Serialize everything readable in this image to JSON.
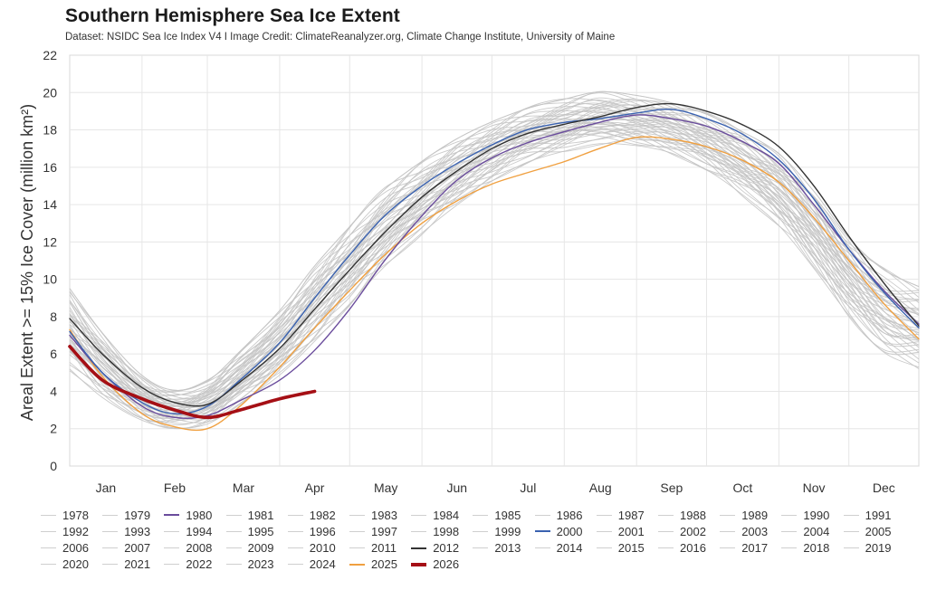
{
  "title": "Southern Hemisphere Sea Ice Extent",
  "subtitle": "Dataset: NSIDC Sea Ice Index V4 I Image Credit: ClimateReanalyzer.org, Climate Change Institute, University of Maine",
  "chart_data": {
    "type": "line",
    "title": "Southern Hemisphere Sea Ice Extent",
    "xlabel": "",
    "ylabel": "Areal Extent >= 15% Ice Cover (million km²)",
    "ylim": [
      0,
      22
    ],
    "xlim": [
      1,
      365
    ],
    "yticks": [
      0,
      2,
      4,
      6,
      8,
      10,
      12,
      14,
      16,
      18,
      20,
      22
    ],
    "month_labels": [
      "Jan",
      "Feb",
      "Mar",
      "Apr",
      "May",
      "Jun",
      "Jul",
      "Aug",
      "Sep",
      "Oct",
      "Nov",
      "Dec"
    ],
    "month_start_days": [
      1,
      32,
      60,
      91,
      121,
      152,
      182,
      213,
      244,
      274,
      305,
      335
    ],
    "grid": true,
    "legend_position": "bottom",
    "colors": {
      "default": "#c4c4c4",
      "1980": "#6a4c9c",
      "2000": "#3a62b0",
      "2012": "#333333",
      "2025": "#f0a040",
      "2026": "#a50f15"
    },
    "x_days": [
      1,
      15,
      32,
      46,
      60,
      74,
      91,
      106,
      121,
      136,
      152,
      167,
      182,
      197,
      213,
      228,
      244,
      259,
      274,
      289,
      305,
      320,
      335,
      350,
      365
    ],
    "climatology_envelope": {
      "upper": [
        9.6,
        7.2,
        4.9,
        4.1,
        4.6,
        6.2,
        8.4,
        10.8,
        12.9,
        14.9,
        16.4,
        17.6,
        18.5,
        19.2,
        19.7,
        20.1,
        19.9,
        19.5,
        18.9,
        18.0,
        16.8,
        14.8,
        12.3,
        10.6,
        9.7
      ],
      "lower": [
        5.1,
        3.6,
        2.4,
        2.0,
        2.2,
        3.3,
        4.8,
        6.6,
        8.6,
        10.6,
        12.4,
        13.9,
        15.2,
        16.2,
        16.8,
        17.2,
        17.1,
        16.7,
        15.8,
        14.5,
        12.8,
        10.5,
        8.0,
        6.0,
        5.2
      ]
    },
    "series": [
      {
        "name": "1980",
        "values": [
          7.0,
          5.0,
          3.2,
          2.6,
          2.7,
          3.5,
          4.6,
          6.2,
          8.4,
          11.0,
          13.4,
          15.3,
          16.5,
          17.3,
          17.9,
          18.4,
          18.8,
          18.6,
          18.2,
          17.4,
          16.2,
          14.0,
          11.6,
          9.4,
          7.6
        ]
      },
      {
        "name": "2000",
        "values": [
          7.2,
          5.0,
          3.4,
          2.8,
          3.2,
          4.6,
          6.6,
          9.0,
          11.3,
          13.4,
          15.0,
          16.2,
          17.2,
          18.0,
          18.4,
          18.6,
          18.9,
          19.1,
          18.6,
          17.8,
          16.4,
          14.3,
          11.6,
          9.3,
          7.4
        ]
      },
      {
        "name": "2012",
        "values": [
          7.9,
          6.0,
          4.2,
          3.4,
          3.3,
          4.5,
          6.3,
          8.4,
          10.5,
          12.5,
          14.4,
          15.8,
          17.0,
          17.8,
          18.3,
          18.7,
          19.2,
          19.4,
          19.0,
          18.3,
          17.1,
          15.0,
          12.3,
          9.8,
          7.5
        ]
      },
      {
        "name": "2025",
        "values": [
          7.3,
          4.8,
          2.8,
          2.1,
          2.0,
          3.2,
          5.3,
          7.4,
          9.4,
          11.3,
          13.0,
          14.2,
          15.1,
          15.7,
          16.3,
          17.0,
          17.6,
          17.5,
          17.1,
          16.4,
          15.2,
          13.3,
          11.0,
          8.7,
          6.8
        ]
      },
      {
        "name": "2026",
        "values": [
          6.4,
          4.6,
          3.6,
          3.0,
          2.6,
          3.0,
          3.6,
          4.0
        ]
      }
    ],
    "legend_years": [
      "1978",
      "1979",
      "1980",
      "1981",
      "1982",
      "1983",
      "1984",
      "1985",
      "1986",
      "1987",
      "1988",
      "1989",
      "1990",
      "1991",
      "1992",
      "1993",
      "1994",
      "1995",
      "1996",
      "1997",
      "1998",
      "1999",
      "2000",
      "2001",
      "2002",
      "2003",
      "2004",
      "2005",
      "2006",
      "2007",
      "2008",
      "2009",
      "2010",
      "2011",
      "2012",
      "2013",
      "2014",
      "2015",
      "2016",
      "2017",
      "2018",
      "2019",
      "2020",
      "2021",
      "2022",
      "2023",
      "2024",
      "2025",
      "2026"
    ]
  }
}
